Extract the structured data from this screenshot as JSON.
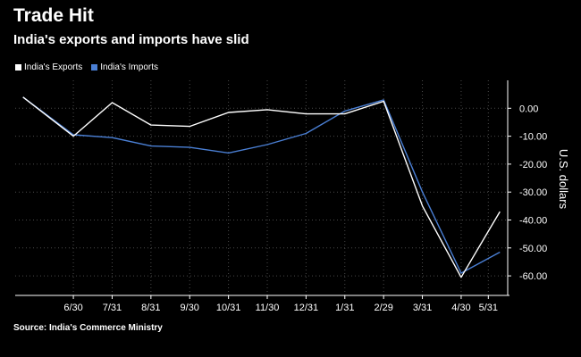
{
  "title": "Trade Hit",
  "subtitle": "India's exports and imports have slid",
  "source": "Source: India's Commerce Ministry",
  "chart_data": {
    "type": "line",
    "ylabel": "U.S. dollars",
    "xlabel": "",
    "ylim": [
      -67,
      10
    ],
    "yticks": [
      0,
      -10,
      -20,
      -30,
      -40,
      -50,
      -60
    ],
    "ytick_labels": [
      "0.00",
      "-10.00",
      "-20.00",
      "-30.00",
      "-40.00",
      "-50.00",
      "-60.00"
    ],
    "x_tick_labels": [
      "6/30",
      "7/31",
      "8/31",
      "9/30",
      "10/31",
      "11/30",
      "12/31",
      "1/31",
      "2/29",
      "3/31",
      "4/30",
      "5/31"
    ],
    "x_tick_positions": [
      1,
      2,
      3,
      4,
      5,
      6,
      7,
      8,
      9,
      10,
      11,
      11.7
    ],
    "x_range": [
      -0.5,
      12.2
    ],
    "grid": true,
    "legend_position": "top-left",
    "series": [
      {
        "name": "India's Exports",
        "color": "#ffffff",
        "x": [
          -0.3,
          1,
          2,
          3,
          4,
          5,
          6,
          7,
          8,
          9,
          10,
          11,
          12
        ],
        "values": [
          4,
          -10,
          2,
          -6,
          -6.5,
          -1.5,
          -0.5,
          -2,
          -2,
          2.5,
          -35,
          -60.5,
          -37
        ]
      },
      {
        "name": "India's Imports",
        "color": "#4a7fd4",
        "x": [
          -0.3,
          1,
          2,
          3,
          4,
          5,
          6,
          7,
          8,
          9,
          10,
          11,
          12
        ],
        "values": [
          4,
          -9.5,
          -10.5,
          -13.5,
          -14,
          -16,
          -13,
          -9,
          -1,
          3,
          -30,
          -59,
          -51.5
        ]
      }
    ]
  }
}
